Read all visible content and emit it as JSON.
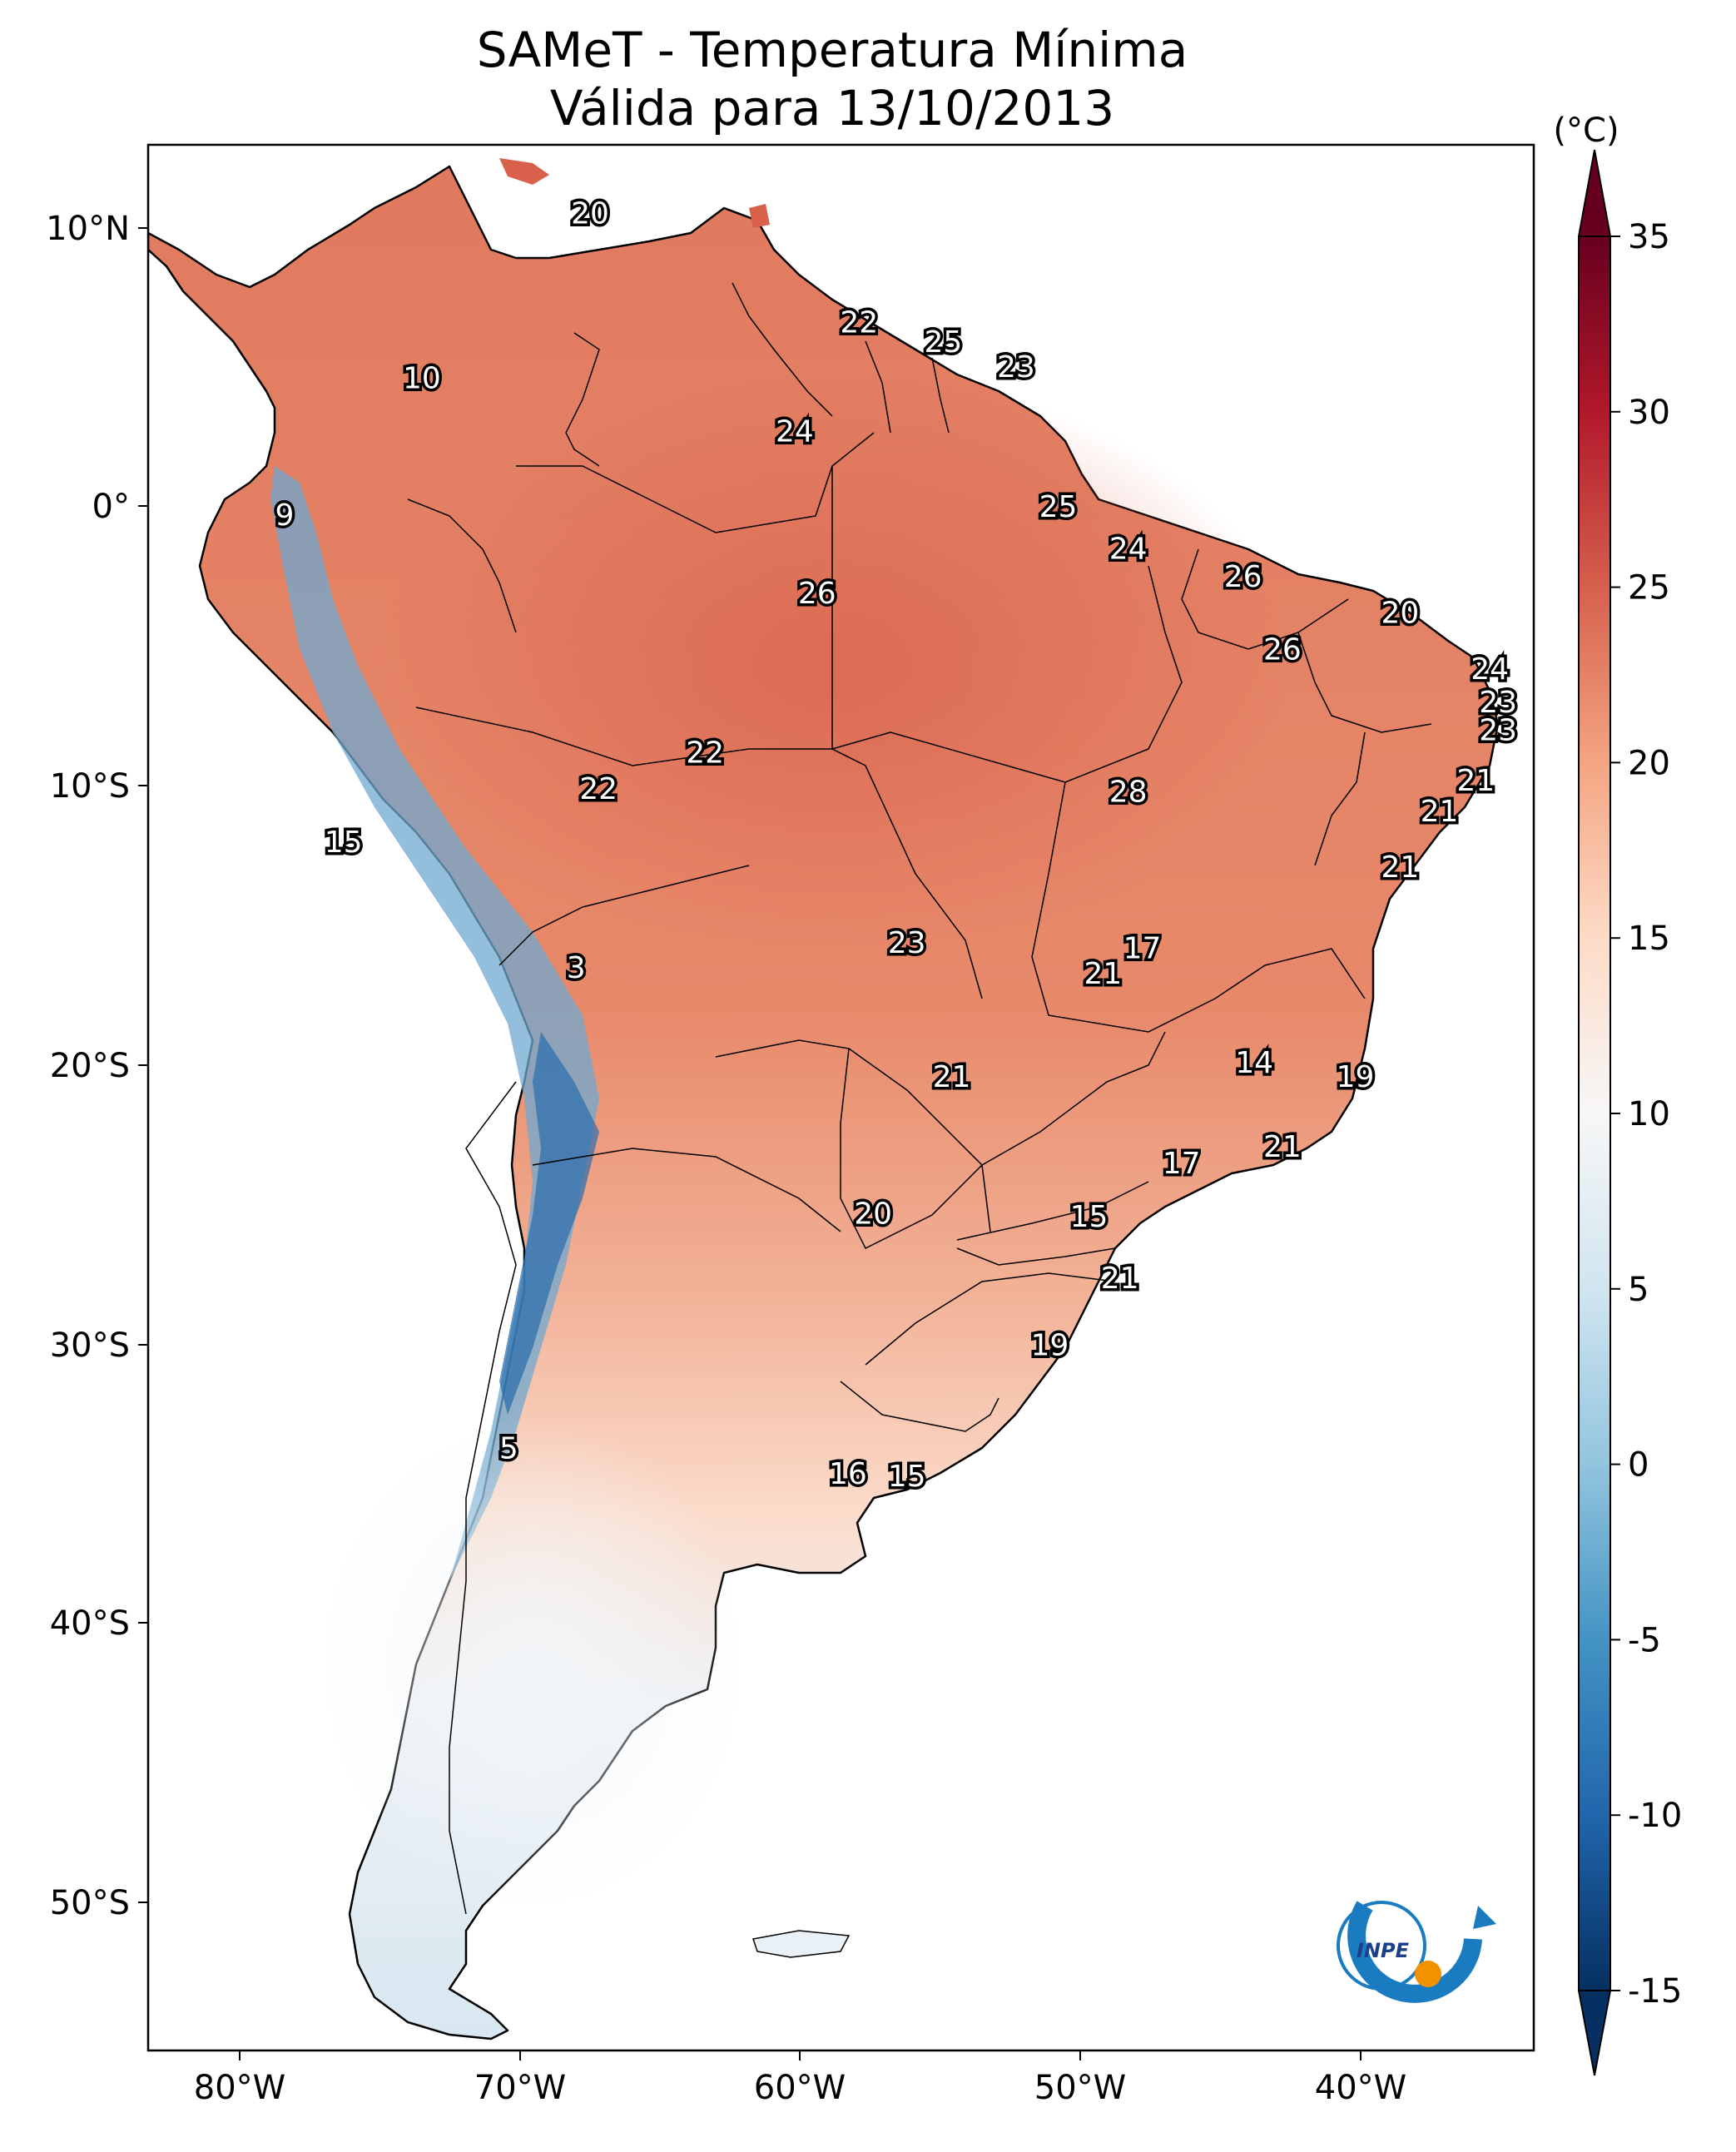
{
  "title": {
    "line1": "SAMeT - Temperatura Mínima",
    "line2": "Válida para 13/10/2013"
  },
  "colorbar": {
    "unit": "(°C)",
    "ticks": [
      "35",
      "30",
      "25",
      "20",
      "15",
      "10",
      "5",
      "0",
      "-5",
      "-10",
      "-15"
    ],
    "values": [
      35,
      30,
      25,
      20,
      15,
      10,
      5,
      0,
      -5,
      -10,
      -15
    ],
    "colors": [
      "#67001f",
      "#b2182b",
      "#d6604d",
      "#f4a582",
      "#fddbc7",
      "#f7f7f7",
      "#d1e5f0",
      "#92c5de",
      "#4393c3",
      "#2166ac",
      "#053061"
    ]
  },
  "axes": {
    "lon_ticks": [
      "80°W",
      "70°W",
      "60°W",
      "50°W",
      "40°W"
    ],
    "lat_ticks": [
      "10°N",
      "0°",
      "10°S",
      "20°S",
      "30°S",
      "40°S",
      "50°S"
    ]
  },
  "map_labels": [
    {
      "text": "20",
      "lon": -67.5,
      "lat": 10.5
    },
    {
      "text": "22",
      "lon": -57.9,
      "lat": 6.6
    },
    {
      "text": "25",
      "lon": -54.9,
      "lat": 5.9
    },
    {
      "text": "23",
      "lon": -52.3,
      "lat": 5.0
    },
    {
      "text": "10",
      "lon": -73.5,
      "lat": 4.6
    },
    {
      "text": "24",
      "lon": -60.2,
      "lat": 2.7
    },
    {
      "text": "25",
      "lon": -50.8,
      "lat": 0.0
    },
    {
      "text": "9",
      "lon": -78.4,
      "lat": -0.3
    },
    {
      "text": "24",
      "lon": -48.3,
      "lat": -1.5
    },
    {
      "text": "26",
      "lon": -44.2,
      "lat": -2.5
    },
    {
      "text": "26",
      "lon": -59.4,
      "lat": -3.1
    },
    {
      "text": "20",
      "lon": -38.6,
      "lat": -3.8
    },
    {
      "text": "26",
      "lon": -42.8,
      "lat": -5.1
    },
    {
      "text": "24",
      "lon": -35.4,
      "lat": -5.8
    },
    {
      "text": "23",
      "lon": -35.1,
      "lat": -7.0
    },
    {
      "text": "23",
      "lon": -35.1,
      "lat": -8.0
    },
    {
      "text": "22",
      "lon": -63.4,
      "lat": -8.8
    },
    {
      "text": "21",
      "lon": -35.9,
      "lat": -9.8
    },
    {
      "text": "22",
      "lon": -67.2,
      "lat": -10.1
    },
    {
      "text": "28",
      "lon": -48.3,
      "lat": -10.2
    },
    {
      "text": "21",
      "lon": -37.2,
      "lat": -10.9
    },
    {
      "text": "15",
      "lon": -76.3,
      "lat": -12.0
    },
    {
      "text": "21",
      "lon": -38.6,
      "lat": -12.9
    },
    {
      "text": "23",
      "lon": -56.2,
      "lat": -15.6
    },
    {
      "text": "17",
      "lon": -47.8,
      "lat": -15.8
    },
    {
      "text": "21",
      "lon": -49.2,
      "lat": -16.7
    },
    {
      "text": "3",
      "lon": -68.0,
      "lat": -16.5
    },
    {
      "text": "14",
      "lon": -43.8,
      "lat": -19.9
    },
    {
      "text": "21",
      "lon": -54.6,
      "lat": -20.4
    },
    {
      "text": "19",
      "lon": -40.2,
      "lat": -20.4
    },
    {
      "text": "21",
      "lon": -42.8,
      "lat": -22.9
    },
    {
      "text": "17",
      "lon": -46.4,
      "lat": -23.5
    },
    {
      "text": "20",
      "lon": -57.4,
      "lat": -25.3
    },
    {
      "text": "15",
      "lon": -49.7,
      "lat": -25.4
    },
    {
      "text": "21",
      "lon": -48.6,
      "lat": -27.6
    },
    {
      "text": "19",
      "lon": -51.1,
      "lat": -30.0
    },
    {
      "text": "5",
      "lon": -70.4,
      "lat": -33.7
    },
    {
      "text": "16",
      "lon": -58.3,
      "lat": -34.6
    },
    {
      "text": "15",
      "lon": -56.2,
      "lat": -34.7
    }
  ],
  "logo": {
    "text": "INPE",
    "icon": "inpe-logo-icon"
  }
}
